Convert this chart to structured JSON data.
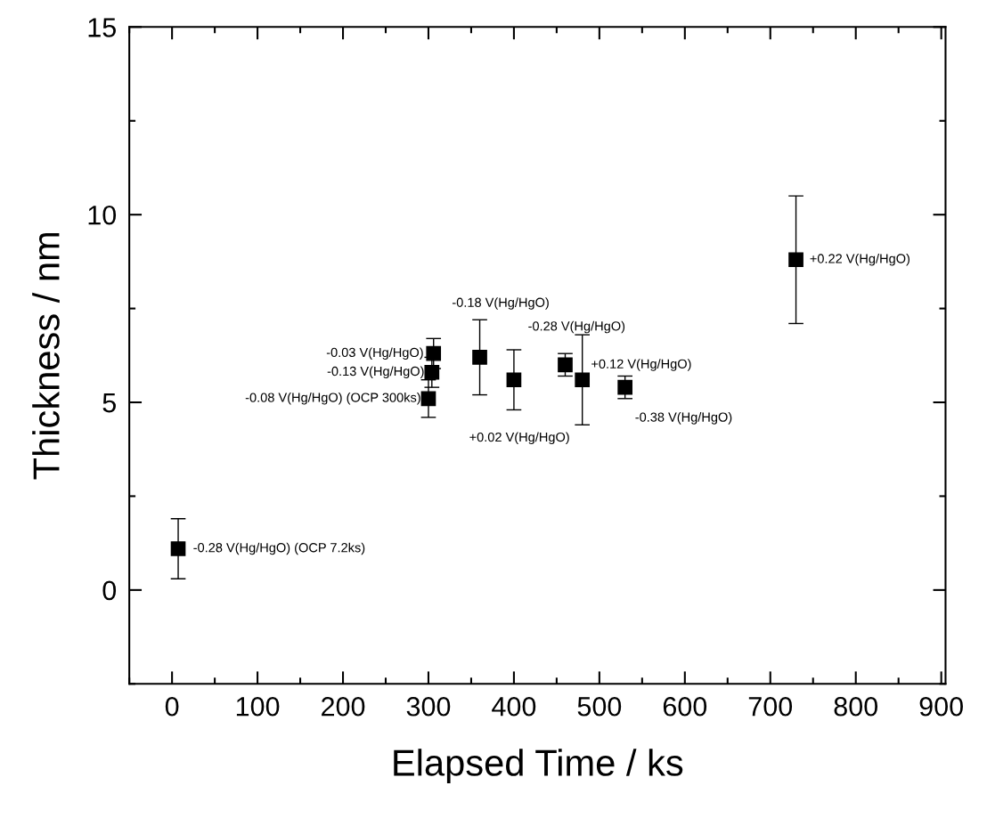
{
  "chart_data": {
    "type": "scatter",
    "xlabel": "Elapsed Time / ks",
    "ylabel": "Thickness / nm",
    "x": [
      7.2,
      300,
      304,
      306,
      360,
      400,
      460,
      480,
      530,
      730
    ],
    "values": [
      1.1,
      5.1,
      5.8,
      6.3,
      6.2,
      5.6,
      6.0,
      5.6,
      5.4,
      8.8
    ],
    "errors": [
      0.8,
      0.5,
      0.4,
      0.4,
      1.0,
      0.8,
      0.3,
      1.2,
      0.3,
      1.7
    ],
    "color": "#000000",
    "marker": "square",
    "grid": false,
    "xlim": [
      -50,
      905
    ],
    "xticks": [
      0,
      100,
      200,
      300,
      400,
      500,
      600,
      700,
      800,
      900
    ],
    "ylim": [
      -2.5,
      15
    ],
    "yticks": [
      0,
      5,
      10,
      15
    ],
    "annotations": [
      {
        "text": "-0.28 V(Hg/HgO) (OCP 7.2ks)",
        "x": 7.2,
        "y": 1.1
      },
      {
        "text": "-0.08 V(Hg/HgO) (OCP 300ks)",
        "x": 300,
        "y": 5.1
      },
      {
        "text": "-0.13 V(Hg/HgO)",
        "x": 304,
        "y": 5.8
      },
      {
        "text": "-0.03 V(Hg/HgO)",
        "x": 306,
        "y": 6.3
      },
      "-0.18 V(Hg/HgO)",
      "+0.02 V(Hg/HgO)",
      "-0.28 V(Hg/HgO)",
      {
        "text": "+0.12 V(Hg/HgO)",
        "x": 480,
        "y": 5.6
      },
      {
        "text": "-0.38 V(Hg/HgO)",
        "x": 530,
        "y": 5.4
      },
      {
        "text": "+0.22 V(Hg/HgO)",
        "x": 730,
        "y": 8.8
      }
    ]
  }
}
